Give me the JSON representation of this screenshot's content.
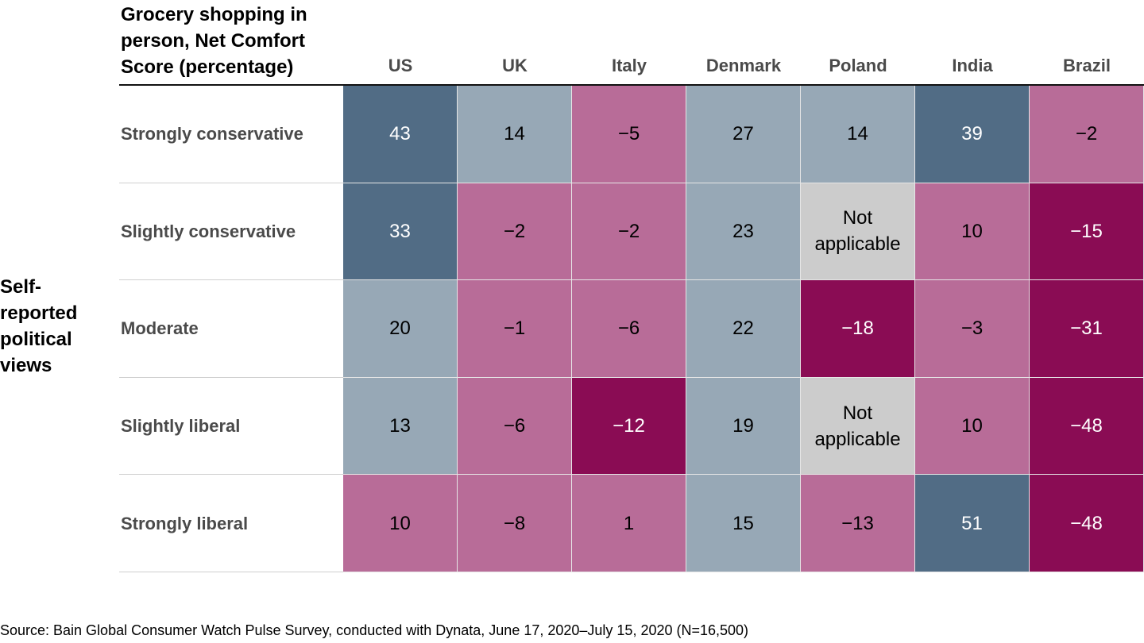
{
  "chart_data": {
    "type": "heatmap",
    "title": "Grocery shopping in person, Net Comfort Score (percentage)",
    "row_axis_label": "Self-reported political views",
    "columns": [
      "US",
      "UK",
      "Italy",
      "Denmark",
      "Poland",
      "India",
      "Brazil"
    ],
    "rows": [
      "Strongly conservative",
      "Slightly conservative",
      "Moderate",
      "Slightly liberal",
      "Strongly liberal"
    ],
    "values": [
      [
        43,
        14,
        -5,
        27,
        14,
        39,
        -2
      ],
      [
        33,
        -2,
        -2,
        23,
        null,
        10,
        -15
      ],
      [
        20,
        -1,
        -6,
        22,
        -18,
        -3,
        -31
      ],
      [
        13,
        -6,
        -12,
        19,
        null,
        10,
        -48
      ],
      [
        10,
        -8,
        1,
        15,
        -13,
        51,
        -48
      ]
    ],
    "display": [
      [
        "43",
        "14",
        "−5",
        "27",
        "14",
        "39",
        "−2"
      ],
      [
        "33",
        "−2",
        "−2",
        "23",
        "Not applicable",
        "10",
        "−15"
      ],
      [
        "20",
        "−1",
        "−6",
        "22",
        "−18",
        "−3",
        "−31"
      ],
      [
        "13",
        "−6",
        "−12",
        "19",
        "Not applicable",
        "10",
        "−48"
      ],
      [
        "10",
        "−8",
        "1",
        "15",
        "−13",
        "51",
        "−48"
      ]
    ],
    "color_classes": [
      [
        "high",
        "mid",
        "low",
        "mid",
        "mid",
        "high",
        "low"
      ],
      [
        "high",
        "low",
        "low",
        "mid",
        "na",
        "low",
        "vlow"
      ],
      [
        "mid",
        "low",
        "low",
        "mid",
        "vlow",
        "low",
        "vlow"
      ],
      [
        "mid",
        "low",
        "vlow",
        "mid",
        "na",
        "low",
        "vlow"
      ],
      [
        "low",
        "low",
        "low",
        "mid",
        "low",
        "high",
        "vlow"
      ]
    ],
    "na_label": "Not applicable"
  },
  "palette": {
    "high": {
      "bg": "#516c85",
      "fg": "#ffffff"
    },
    "mid": {
      "bg": "#97a8b6",
      "fg": "#000000"
    },
    "low": {
      "bg": "#b86c98",
      "fg": "#000000"
    },
    "vlow": {
      "bg": "#8a0c54",
      "fg": "#ffffff"
    },
    "na": {
      "bg": "#cccccc",
      "fg": "#000000"
    }
  },
  "source": "Source: Bain Global Consumer Watch Pulse Survey, conducted with Dynata, June 17, 2020–July 15, 2020 (N=16,500)"
}
